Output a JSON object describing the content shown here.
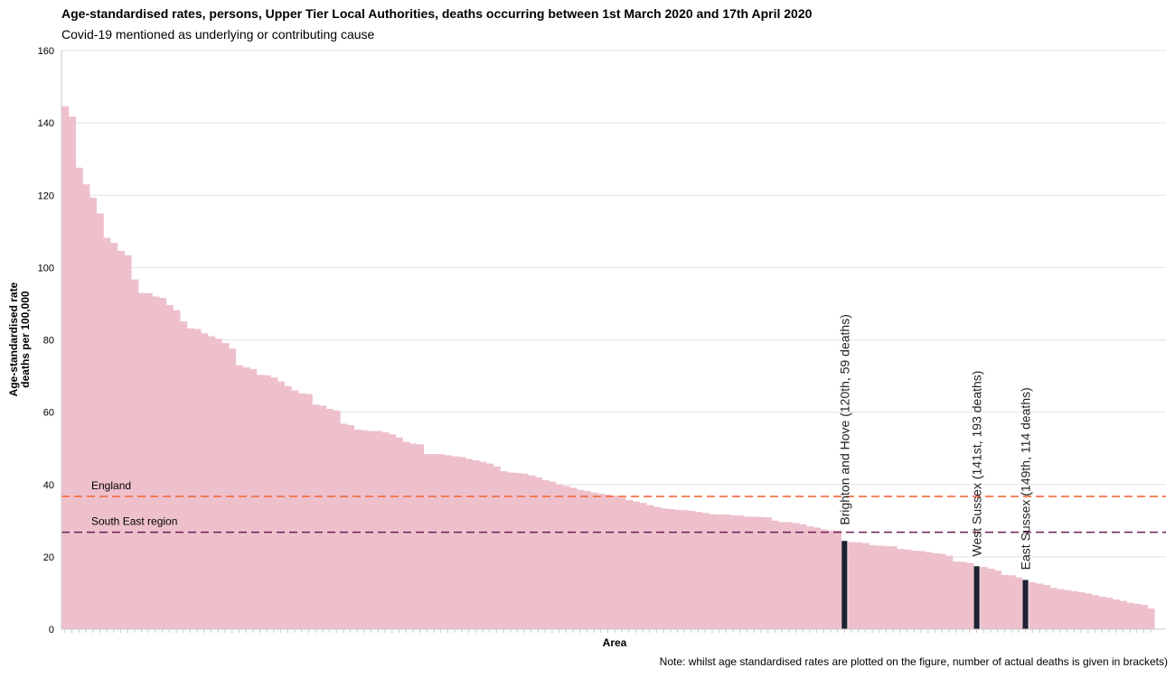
{
  "title": "Age-standardised rates, persons, Upper Tier Local Authorities, deaths occurring between 1st March 2020 and 17th April 2020",
  "subtitle": "Covid-19 mentioned as underlying or contributing cause",
  "note": "Note: whilst age standardised rates are plotted on the figure, number of actual deaths is given in brackets)",
  "colors": {
    "bar": "#eec0cc",
    "highlight": "#1e2233",
    "england_line": "#f36a3c",
    "south_east_line": "#6a1f57",
    "grid": "#e3e3e3"
  },
  "chart_data": {
    "type": "bar",
    "xlabel": "Area",
    "ylabel": "Age-standardised rate deaths per 100,000",
    "ylabel_lines": [
      "Age-standardised rate",
      "deaths per 100,000"
    ],
    "ylim": [
      0,
      160
    ],
    "yticks": [
      0,
      20,
      40,
      60,
      80,
      100,
      120,
      140,
      160
    ],
    "grid": "horizontal",
    "values": [
      144.6,
      141.7,
      127.6,
      123.0,
      119.3,
      115.0,
      108.2,
      106.8,
      104.6,
      103.4,
      96.7,
      93.0,
      92.9,
      92.0,
      91.6,
      89.6,
      88.2,
      85.1,
      83.2,
      83.0,
      81.8,
      81.0,
      80.3,
      79.1,
      77.6,
      73.0,
      72.4,
      71.9,
      70.3,
      70.2,
      69.6,
      68.5,
      67.2,
      66.0,
      65.2,
      65.0,
      62.1,
      61.8,
      60.9,
      60.5,
      56.8,
      56.4,
      55.2,
      55.0,
      54.8,
      54.8,
      54.4,
      53.9,
      53.0,
      51.8,
      51.3,
      51.1,
      48.4,
      48.4,
      48.4,
      48.1,
      47.8,
      47.6,
      47.1,
      46.7,
      46.3,
      45.8,
      45.0,
      43.7,
      43.3,
      43.2,
      43.0,
      42.5,
      42.0,
      41.2,
      40.8,
      40.0,
      39.6,
      39.1,
      38.5,
      38.2,
      37.8,
      37.4,
      37.2,
      36.9,
      36.4,
      35.7,
      35.3,
      34.9,
      34.3,
      33.8,
      33.4,
      33.2,
      33.0,
      32.9,
      32.7,
      32.4,
      32.1,
      31.8,
      31.7,
      31.7,
      31.5,
      31.4,
      31.1,
      31.1,
      31.0,
      30.9,
      30.0,
      29.6,
      29.6,
      29.3,
      29.0,
      28.4,
      28.1,
      27.6,
      27.3,
      27.3,
      24.4,
      24.1,
      24.0,
      23.8,
      23.2,
      23.1,
      23.0,
      22.9,
      22.2,
      22.0,
      21.7,
      21.6,
      21.3,
      21.0,
      20.8,
      20.3,
      18.7,
      18.6,
      18.3,
      17.4,
      17.2,
      16.7,
      16.2,
      15.0,
      14.9,
      14.3,
      13.6,
      13.0,
      12.6,
      12.2,
      11.4,
      11.1,
      10.8,
      10.5,
      10.2,
      9.9,
      9.4,
      9.0,
      8.7,
      8.2,
      7.8,
      7.3,
      7.0,
      6.7,
      5.7
    ],
    "highlights": [
      {
        "index": 112,
        "value": 27.3,
        "label": "Brighton and Hove (120th, 59 deaths)"
      },
      {
        "index": 131,
        "value": 18.6,
        "label": "West Sussex (141st, 193 deaths)"
      },
      {
        "index": 138,
        "value": 14.9,
        "label": "East Sussex (149th, 114 deaths)"
      }
    ],
    "reference_lines": [
      {
        "name": "England",
        "value": 36.7,
        "color": "#f36a3c"
      },
      {
        "name": "South East region",
        "value": 26.8,
        "color": "#6a1f57"
      }
    ]
  }
}
